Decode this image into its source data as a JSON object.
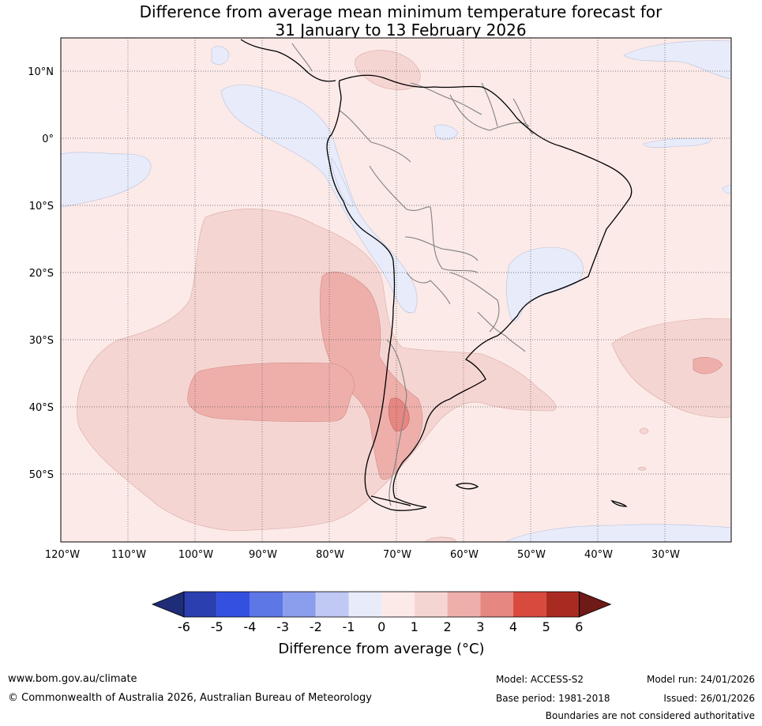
{
  "title": {
    "line1": "Difference from average mean minimum temperature forecast for",
    "line2": "31 January to 13 February 2026"
  },
  "map": {
    "lat_labels": [
      "10°N",
      "0°",
      "10°S",
      "20°S",
      "30°S",
      "40°S",
      "50°S"
    ],
    "lon_labels": [
      "120°W",
      "110°W",
      "100°W",
      "90°W",
      "80°W",
      "70°W",
      "60°W",
      "50°W",
      "40°W",
      "30°W"
    ],
    "colors": {
      "neg1": "#e8ecfa",
      "zero_one": "#fbeae8",
      "one_two": "#f5d5d2",
      "two_three": "#eeafab",
      "three_four": "#e78782",
      "land_line": "#000000",
      "border_line": "#808080"
    }
  },
  "colorbar": {
    "labels": [
      "-6",
      "-5",
      "-4",
      "-3",
      "-2",
      "-1",
      "0",
      "1",
      "2",
      "3",
      "4",
      "5",
      "6"
    ],
    "colors": [
      "#1f2d78",
      "#2b3fb1",
      "#3350e0",
      "#5e77e6",
      "#8b9ded",
      "#c0c8f4",
      "#e8ecfa",
      "#fbeae8",
      "#f5d5d2",
      "#eeafab",
      "#e78782",
      "#d94a3e",
      "#a92a20",
      "#6e1a16"
    ],
    "axis_label": "Difference from average (°C)"
  },
  "footer": {
    "website": "www.bom.gov.au/climate",
    "copyright": "© Commonwealth of Australia 2026, Australian Bureau of Meteorology",
    "model": "Model: ACCESS-S2",
    "base_period": "Base period: 1981-2018",
    "model_run": "Model run: 24/01/2026",
    "issued": "Issued: 26/01/2026",
    "disclaimer": "Boundaries are not considered authoritative"
  }
}
